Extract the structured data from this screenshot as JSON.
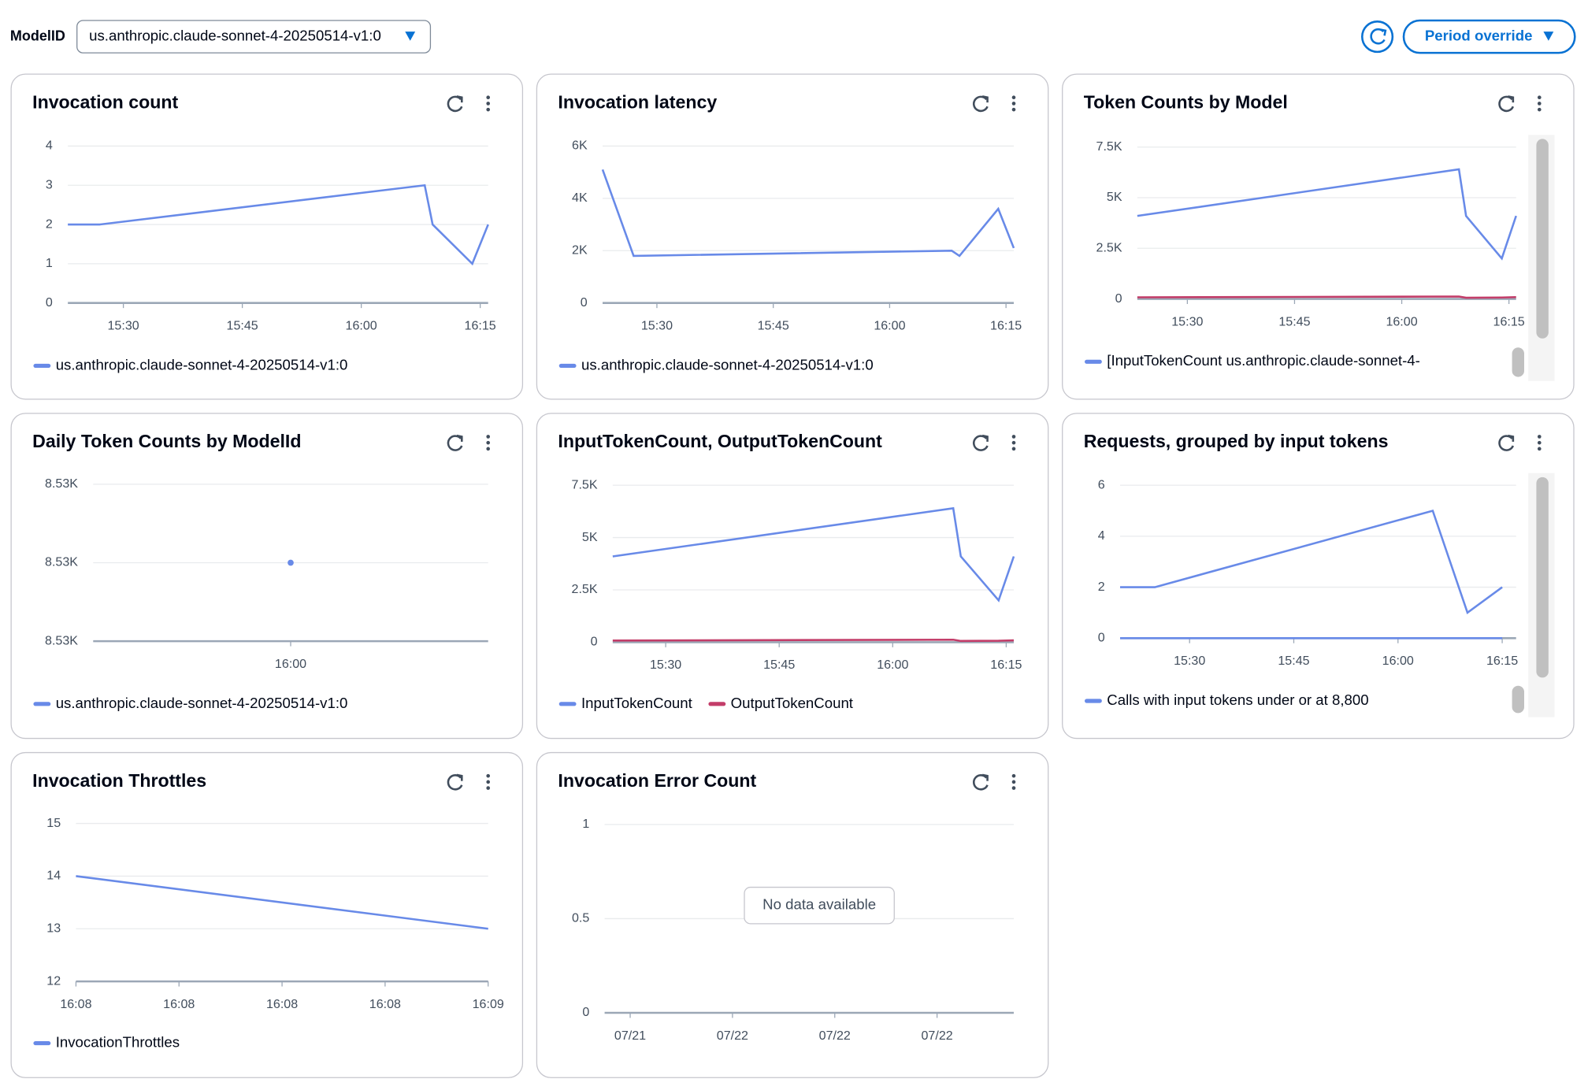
{
  "header": {
    "label": "ModelID",
    "model": "us.anthropic.claude-sonnet-4-20250514-v1:0",
    "period": "Period override"
  },
  "chart_data": [
    {
      "type": "line",
      "title": "Invocation count",
      "x": [
        923,
        927,
        968,
        969,
        974,
        976
      ],
      "series": [
        {
          "name": "us.anthropic.claude-sonnet-4-20250514-v1:0",
          "color": "#688ae8",
          "values": [
            2,
            2,
            3,
            2,
            1,
            2
          ]
        }
      ],
      "xlim": [
        923,
        976
      ],
      "xticks": [
        {
          "value": 930,
          "label": "15:30"
        },
        {
          "value": 945,
          "label": "15:45"
        },
        {
          "value": 960,
          "label": "16:00"
        },
        {
          "value": 975,
          "label": "16:15"
        }
      ],
      "ylim": [
        0,
        4
      ],
      "yticks": [
        0,
        1,
        2,
        3,
        4
      ]
    },
    {
      "type": "line",
      "title": "Invocation latency",
      "x": [
        923,
        927,
        968,
        969,
        974,
        976
      ],
      "series": [
        {
          "name": "us.anthropic.claude-sonnet-4-20250514-v1:0",
          "color": "#688ae8",
          "values": [
            5100,
            1800,
            2000,
            1800,
            3600,
            2100
          ]
        }
      ],
      "xlim": [
        923,
        976
      ],
      "xticks": [
        {
          "value": 930,
          "label": "15:30"
        },
        {
          "value": 945,
          "label": "15:45"
        },
        {
          "value": 960,
          "label": "16:00"
        },
        {
          "value": 975,
          "label": "16:15"
        }
      ],
      "ylim": [
        0,
        6000
      ],
      "yticks": [
        0,
        {
          "value": 2000,
          "label": "2K"
        },
        {
          "value": 4000,
          "label": "4K"
        },
        {
          "value": 6000,
          "label": "6K"
        }
      ]
    },
    {
      "type": "line",
      "title": "Token Counts by Model",
      "x": [
        923,
        968,
        969,
        974,
        976
      ],
      "series": [
        {
          "name": "[InputTokenCount us.anthropic.claude-sonnet-4-",
          "color": "#688ae8",
          "values": [
            4100,
            6400,
            4100,
            2000,
            4100
          ]
        },
        {
          "color": "#c33d69",
          "values": [
            80,
            120,
            60,
            70,
            90
          ]
        }
      ],
      "xlim": [
        923,
        976
      ],
      "xticks": [
        {
          "value": 930,
          "label": "15:30"
        },
        {
          "value": 945,
          "label": "15:45"
        },
        {
          "value": 960,
          "label": "16:00"
        },
        {
          "value": 975,
          "label": "16:15"
        }
      ],
      "ylim": [
        0,
        7500
      ],
      "yticks": [
        0,
        {
          "value": 2500,
          "label": "2.5K"
        },
        {
          "value": 5000,
          "label": "5K"
        },
        {
          "value": 7500,
          "label": "7.5K"
        }
      ]
    },
    {
      "type": "line",
      "title": "Daily Token Counts by ModelId",
      "x": [
        960
      ],
      "series": [
        {
          "name": "us.anthropic.claude-sonnet-4-20250514-v1:0",
          "color": "#688ae8",
          "values": [
            8530
          ]
        }
      ],
      "xlim": [
        940,
        980
      ],
      "xticks": [
        {
          "value": 960,
          "label": "16:00"
        }
      ],
      "ylim": [
        8526,
        8534
      ],
      "yticks": [
        {
          "value": 8526,
          "label": "8.53K"
        },
        {
          "value": 8530,
          "label": "8.53K"
        },
        {
          "value": 8534,
          "label": "8.53K"
        }
      ]
    },
    {
      "type": "line",
      "title": "InputTokenCount, OutputTokenCount",
      "x": [
        923,
        968,
        969,
        974,
        976
      ],
      "series": [
        {
          "name": "InputTokenCount",
          "color": "#688ae8",
          "values": [
            4100,
            6400,
            4100,
            2000,
            4100
          ]
        },
        {
          "name": "OutputTokenCount",
          "color": "#c33d69",
          "values": [
            80,
            120,
            60,
            70,
            90
          ]
        }
      ],
      "xlim": [
        923,
        976
      ],
      "xticks": [
        {
          "value": 930,
          "label": "15:30"
        },
        {
          "value": 945,
          "label": "15:45"
        },
        {
          "value": 960,
          "label": "16:00"
        },
        {
          "value": 975,
          "label": "16:15"
        }
      ],
      "ylim": [
        0,
        7500
      ],
      "yticks": [
        0,
        {
          "value": 2500,
          "label": "2.5K"
        },
        {
          "value": 5000,
          "label": "5K"
        },
        {
          "value": 7500,
          "label": "7.5K"
        }
      ]
    },
    {
      "type": "line",
      "title": "Requests, grouped by input tokens",
      "x": [
        920,
        925,
        965,
        970,
        975
      ],
      "series": [
        {
          "name": "Calls with input tokens under or at 8,800",
          "color": "#688ae8",
          "values": [
            2,
            2,
            5,
            1,
            2
          ]
        },
        {
          "color": "#688ae8",
          "values": [
            0,
            0,
            0,
            0,
            0
          ]
        }
      ],
      "xlim": [
        920,
        977
      ],
      "xticks": [
        {
          "value": 930,
          "label": "15:30"
        },
        {
          "value": 945,
          "label": "15:45"
        },
        {
          "value": 960,
          "label": "16:00"
        },
        {
          "value": 975,
          "label": "16:15"
        }
      ],
      "ylim": [
        0,
        6
      ],
      "yticks": [
        0,
        2,
        4,
        6
      ]
    },
    {
      "type": "line",
      "title": "Invocation Throttles",
      "x": [
        968,
        969
      ],
      "series": [
        {
          "name": "InvocationThrottles",
          "color": "#688ae8",
          "values": [
            14,
            13
          ]
        }
      ],
      "xlim": [
        968,
        969
      ],
      "xticks": [
        {
          "value": 968,
          "label": "16:08"
        },
        {
          "value": 968.25,
          "label": "16:08"
        },
        {
          "value": 968.5,
          "label": "16:08"
        },
        {
          "value": 968.75,
          "label": "16:08"
        },
        {
          "value": 969,
          "label": "16:09"
        }
      ],
      "ylim": [
        12,
        15
      ],
      "yticks": [
        12,
        13,
        14,
        15
      ]
    },
    {
      "type": "line",
      "title": "Invocation Error Count",
      "categories": [
        "07/21",
        "07/22",
        "07/22",
        "07/22"
      ],
      "annotation": "No data available",
      "ylim": [
        0,
        1
      ],
      "yticks": [
        0,
        0.5,
        1
      ]
    }
  ]
}
